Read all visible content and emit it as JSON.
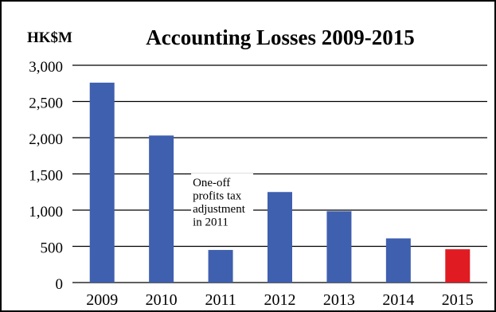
{
  "chart_data": {
    "type": "bar",
    "title": "Accounting Losses 2009-2015",
    "ylabel": "HK$M",
    "xlabel": "",
    "categories": [
      "2009",
      "2010",
      "2011",
      "2012",
      "2013",
      "2014",
      "2015"
    ],
    "values": [
      2760,
      2030,
      450,
      1250,
      985,
      610,
      460
    ],
    "ylim": [
      0,
      3000
    ],
    "yticks": [
      0,
      500,
      1000,
      1500,
      2000,
      2500,
      3000
    ],
    "ytick_labels": [
      "0",
      "500",
      "1,000",
      "1,500",
      "2,000",
      "2,500",
      "3,000"
    ],
    "grid": true,
    "colors": {
      "bar": "#3f5faf",
      "highlight": "#e11b22",
      "highlight_category": "2015",
      "grid": "#000000"
    },
    "annotation": {
      "lines": [
        "One-off",
        "profits tax",
        "adjustment",
        "in 2011"
      ],
      "target_category": "2011"
    }
  }
}
